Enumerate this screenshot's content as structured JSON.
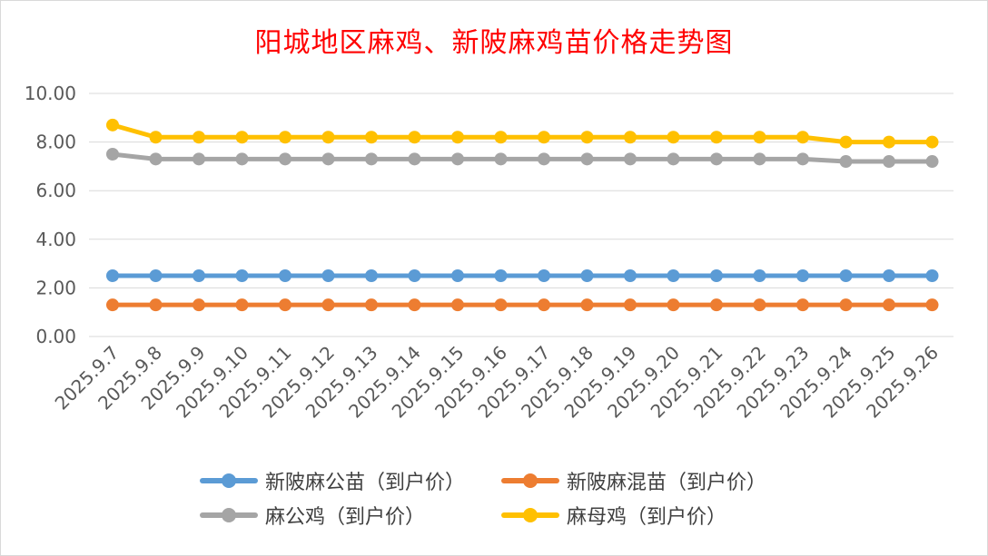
{
  "chart_data": {
    "type": "line",
    "title": "阳城地区麻鸡、新陂麻鸡苗价格走势图",
    "categories": [
      "2025.9.7",
      "2025.9.8",
      "2025.9.9",
      "2025.9.10",
      "2025.9.11",
      "2025.9.12",
      "2025.9.13",
      "2025.9.14",
      "2025.9.15",
      "2025.9.16",
      "2025.9.17",
      "2025.9.18",
      "2025.9.19",
      "2025.9.20",
      "2025.9.21",
      "2025.9.22",
      "2025.9.23",
      "2025.9.24",
      "2025.9.25",
      "2025.9.26"
    ],
    "y_ticks": [
      "0.00",
      "2.00",
      "4.00",
      "6.00",
      "8.00",
      "10.00"
    ],
    "ylim": [
      0,
      10
    ],
    "grid": true,
    "legend_position": "bottom",
    "series": [
      {
        "name": "新陂麻公苗（到户价）",
        "color": "#5b9bd5",
        "values": [
          2.5,
          2.5,
          2.5,
          2.5,
          2.5,
          2.5,
          2.5,
          2.5,
          2.5,
          2.5,
          2.5,
          2.5,
          2.5,
          2.5,
          2.5,
          2.5,
          2.5,
          2.5,
          2.5,
          2.5
        ]
      },
      {
        "name": "新陂麻混苗（到户价）",
        "color": "#ed7d31",
        "values": [
          1.3,
          1.3,
          1.3,
          1.3,
          1.3,
          1.3,
          1.3,
          1.3,
          1.3,
          1.3,
          1.3,
          1.3,
          1.3,
          1.3,
          1.3,
          1.3,
          1.3,
          1.3,
          1.3,
          1.3
        ]
      },
      {
        "name": "麻公鸡（到户价）",
        "color": "#a5a5a5",
        "values": [
          7.5,
          7.3,
          7.3,
          7.3,
          7.3,
          7.3,
          7.3,
          7.3,
          7.3,
          7.3,
          7.3,
          7.3,
          7.3,
          7.3,
          7.3,
          7.3,
          7.3,
          7.2,
          7.2,
          7.2
        ]
      },
      {
        "name": "麻母鸡（到户价）",
        "color": "#ffc000",
        "values": [
          8.7,
          8.2,
          8.2,
          8.2,
          8.2,
          8.2,
          8.2,
          8.2,
          8.2,
          8.2,
          8.2,
          8.2,
          8.2,
          8.2,
          8.2,
          8.2,
          8.2,
          8.0,
          8.0,
          8.0
        ]
      }
    ]
  }
}
